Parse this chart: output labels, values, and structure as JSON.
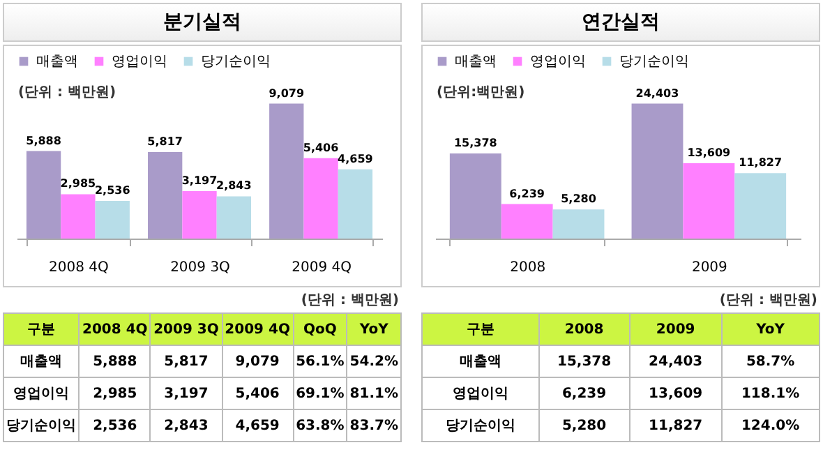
{
  "chart_data": [
    {
      "type": "bar",
      "title": "분기실적",
      "categories": [
        "2008 4Q",
        "2009 3Q",
        "2009 4Q"
      ],
      "series": [
        {
          "name": "매출액",
          "color": "#a99bc9",
          "values": [
            5888,
            5817,
            9079
          ],
          "value_labels": [
            "5,888",
            "5,817",
            "9,079"
          ]
        },
        {
          "name": "영업이익",
          "color": "#ff80ff",
          "values": [
            2985,
            3197,
            5406
          ],
          "value_labels": [
            "2,985",
            "3,197",
            "5,406"
          ]
        },
        {
          "name": "당기순이익",
          "color": "#b7dde8",
          "values": [
            2536,
            2843,
            4659
          ],
          "value_labels": [
            "2,536",
            "2,843",
            "4,659"
          ]
        }
      ],
      "legend": "top left",
      "grid": false,
      "annotations": [
        "(단위 : 백만원)",
        "(단위 : 백만원)",
        "구분",
        "QoQ",
        "YoY",
        "56.1%",
        "54.2%",
        "69.1%",
        "81.1%",
        "63.8%",
        "83.7%"
      ]
    },
    {
      "type": "bar",
      "title": "연간실적",
      "categories": [
        "2008",
        "2009"
      ],
      "series": [
        {
          "name": "매출액",
          "color": "#a99bc9",
          "values": [
            15378,
            24403
          ],
          "value_labels": [
            "15,378",
            "24,403"
          ]
        },
        {
          "name": "영업이익",
          "color": "#ff80ff",
          "values": [
            6239,
            13609
          ],
          "value_labels": [
            "6,239",
            "13,609"
          ]
        },
        {
          "name": "당기순이익",
          "color": "#b7dde8",
          "values": [
            5280,
            11827
          ],
          "value_labels": [
            "5,280",
            "11,827"
          ]
        }
      ],
      "legend": "top left",
      "grid": false,
      "annotations": [
        "(단위:백만원)",
        "(단위 : 백만원)",
        "구분",
        "YoY",
        "58.7%",
        "118.1%",
        "124.0%"
      ]
    }
  ]
}
